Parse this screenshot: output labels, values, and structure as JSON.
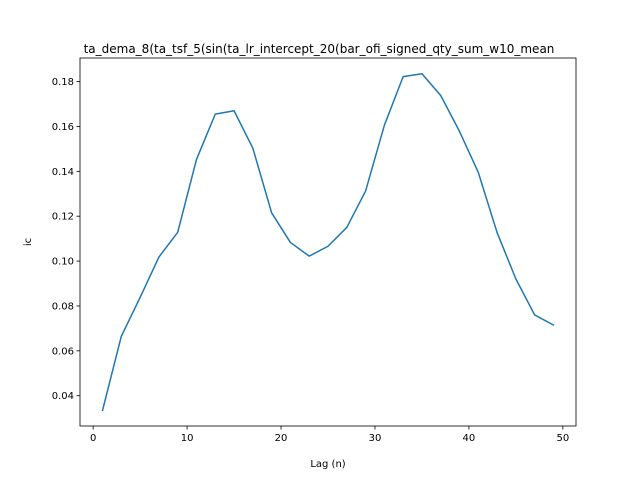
{
  "chart_data": {
    "type": "line",
    "title": "ta_dema_8(ta_tsf_5(sin(ta_lr_intercept_20(bar_ofi_signed_qty_sum_w10_mean",
    "xlabel": "Lag (n)",
    "ylabel": "ic",
    "xlim": [
      -1.4,
      51.4
    ],
    "ylim": [
      0.0265,
      0.1905
    ],
    "x_ticks": [
      0,
      10,
      20,
      30,
      40,
      50
    ],
    "y_ticks": [
      0.04,
      0.06,
      0.08,
      0.1,
      0.12,
      0.14,
      0.16,
      0.18
    ],
    "x_tick_labels": [
      "0",
      "10",
      "20",
      "30",
      "40",
      "50"
    ],
    "y_tick_labels": [
      "0.04",
      "0.06",
      "0.08",
      "0.10",
      "0.12",
      "0.14",
      "0.16",
      "0.18"
    ],
    "grid": false,
    "series": [
      {
        "color": "#1f77b4",
        "x": [
          1,
          3,
          5,
          7,
          9,
          11,
          13,
          15,
          17,
          19,
          21,
          23,
          25,
          27,
          29,
          31,
          33,
          35,
          37,
          39,
          41,
          43,
          45,
          47,
          49
        ],
        "y": [
          0.0335,
          0.0665,
          0.0838,
          0.1018,
          0.1128,
          0.1453,
          0.1655,
          0.167,
          0.1503,
          0.1215,
          0.1083,
          0.1022,
          0.1066,
          0.115,
          0.1312,
          0.1605,
          0.1822,
          0.1835,
          0.1738,
          0.1578,
          0.1395,
          0.1127,
          0.092,
          0.076,
          0.0715
        ]
      }
    ]
  }
}
